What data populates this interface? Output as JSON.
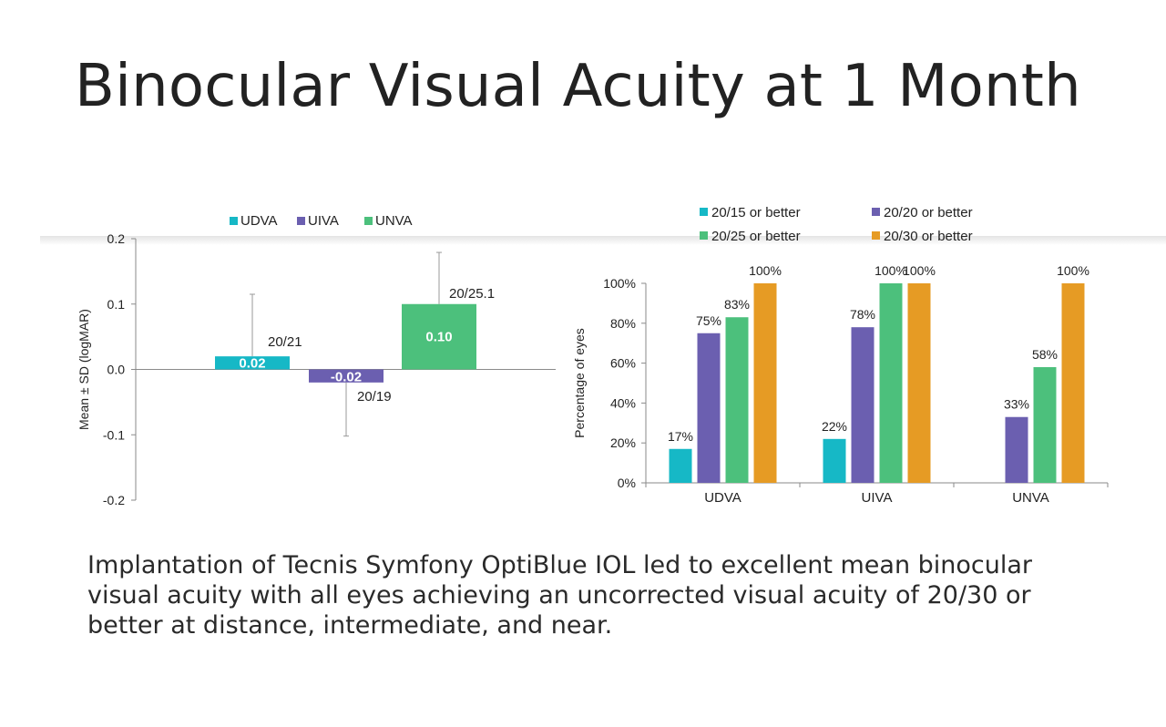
{
  "title": "Binocular Visual Acuity at 1 Month",
  "caption": "Implantation of Tecnis Symfony OptiBlue IOL led to excellent mean binocular visual acuity with all eyes achieving an uncorrected visual acuity of 20/30 or better at distance, intermediate, and near.",
  "colors": {
    "teal": "#16b8c6",
    "purple": "#6b5fb0",
    "green": "#4cc07c",
    "orange": "#e69b24"
  },
  "chart_data": [
    {
      "type": "bar",
      "ylabel": "Mean ± SD (logMAR)",
      "xlabel": "",
      "ylim": [
        -0.2,
        0.2
      ],
      "yticks": [
        "0.2",
        "0.1",
        "0.0",
        "-0.1",
        "-0.2"
      ],
      "legend_position": "top",
      "series": [
        {
          "name": "UDVA",
          "value": 0.02,
          "value_label": "0.02",
          "sd": 0.095,
          "snellen": "20/21",
          "color": "#16b8c6"
        },
        {
          "name": "UIVA",
          "value": -0.02,
          "value_label": "-0.02",
          "sd": 0.082,
          "snellen": "20/19",
          "color": "#6b5fb0"
        },
        {
          "name": "UNVA",
          "value": 0.1,
          "value_label": "0.10",
          "sd": 0.079,
          "snellen": "20/25.1",
          "color": "#4cc07c"
        }
      ]
    },
    {
      "type": "bar",
      "ylabel": "Percentage of eyes",
      "xlabel": "",
      "ylim": [
        0,
        100
      ],
      "yticks": [
        "100%",
        "80%",
        "60%",
        "40%",
        "20%",
        "0%"
      ],
      "legend_position": "top",
      "categories": [
        "UDVA",
        "UIVA",
        "UNVA"
      ],
      "series": [
        {
          "name": "20/15 or better",
          "values": [
            17,
            22,
            0
          ],
          "labels": [
            "17%",
            "22%",
            ""
          ],
          "color": "#16b8c6"
        },
        {
          "name": "20/20 or better",
          "values": [
            75,
            78,
            33
          ],
          "labels": [
            "75%",
            "78%",
            "33%"
          ],
          "color": "#6b5fb0"
        },
        {
          "name": "20/25 or better",
          "values": [
            83,
            100,
            58
          ],
          "labels": [
            "83%",
            "100%",
            "58%"
          ],
          "color": "#4cc07c"
        },
        {
          "name": "20/30 or better",
          "values": [
            100,
            100,
            100
          ],
          "labels": [
            "100%",
            "100%",
            "100%"
          ],
          "color": "#e69b24"
        }
      ]
    }
  ]
}
